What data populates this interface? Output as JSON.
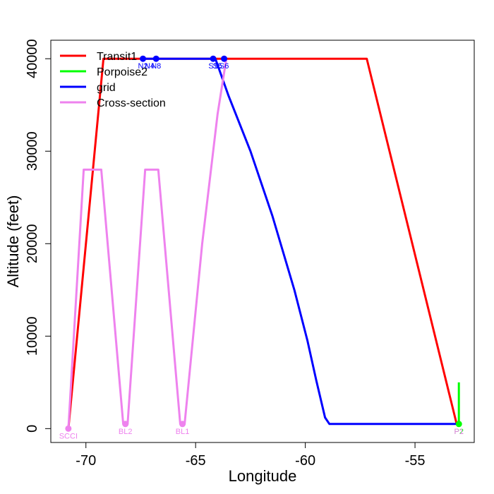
{
  "chart_data": {
    "type": "line",
    "title": "",
    "xlabel": "Longitude",
    "ylabel": "Altitude (feet)",
    "xlim": [
      -71.6,
      -52.3
    ],
    "ylim": [
      -1500,
      42000
    ],
    "x_ticks": [
      -70,
      -65,
      -60,
      -55
    ],
    "x_tick_labels": [
      "-70",
      "-65",
      "-60",
      "-55"
    ],
    "y_ticks": [
      0,
      10000,
      20000,
      30000,
      40000
    ],
    "y_tick_labels": [
      "0",
      "10000",
      "20000",
      "30000",
      "40000"
    ],
    "grid": false,
    "legend_position": "top-left",
    "series": [
      {
        "name": "Transit1",
        "color": "#ff0000",
        "x": [
          -70.8,
          -69.2,
          -57.2,
          -53.1
        ],
        "y": [
          0,
          40000,
          40000,
          500
        ]
      },
      {
        "name": "Porpoise2",
        "color": "#00ff00",
        "x": [
          -53.0,
          -53.0
        ],
        "y": [
          500,
          5000
        ]
      },
      {
        "name": "grid",
        "color": "#0000ff",
        "x": [
          -67.4,
          -64.1,
          -63.5,
          -62.5,
          -61.5,
          -60.5,
          -59.9,
          -59.5,
          -59.1,
          -58.9,
          -53.1
        ],
        "y": [
          40000,
          40000,
          36000,
          30000,
          23000,
          15000,
          9500,
          5200,
          1200,
          500,
          500
        ]
      },
      {
        "name": "Cross-section",
        "color": "#ee82ee",
        "x": [
          -70.8,
          -70.1,
          -69.3,
          -68.3,
          -68.1,
          -67.3,
          -66.7,
          -65.7,
          -65.5,
          -64.7,
          -64.0,
          -63.6
        ],
        "y": [
          0,
          28000,
          28000,
          500,
          500,
          28000,
          28000,
          500,
          500,
          20000,
          34000,
          40000
        ]
      }
    ],
    "annotations": [
      {
        "label": "SCCI",
        "x": -70.8,
        "y": 0,
        "color": "#ee82ee",
        "marker": true
      },
      {
        "label": "BL2",
        "x": -68.2,
        "y": 500,
        "color": "#ee82ee",
        "marker": true
      },
      {
        "label": "BL1",
        "x": -65.6,
        "y": 500,
        "color": "#ee82ee",
        "marker": true
      },
      {
        "label": "N2",
        "x": -67.4,
        "y": 40000,
        "color": "#0000ff",
        "marker": true
      },
      {
        "label": "N4",
        "x": -67.1,
        "y": 40000,
        "color": "#0000ff",
        "marker": false
      },
      {
        "label": "N8",
        "x": -66.8,
        "y": 40000,
        "color": "#0000ff",
        "marker": true
      },
      {
        "label": "S1",
        "x": -64.2,
        "y": 40000,
        "color": "#0000ff",
        "marker": true
      },
      {
        "label": "S5",
        "x": -64.0,
        "y": 40000,
        "color": "#0000ff",
        "marker": false
      },
      {
        "label": "S6",
        "x": -63.7,
        "y": 40000,
        "color": "#0000ff",
        "marker": true
      },
      {
        "label": "P2",
        "x": -53.0,
        "y": 500,
        "color": "#00ff00",
        "marker": true
      },
      {
        "label": "P1",
        "x": -53.0,
        "y": 500,
        "color": "#ee82ee",
        "marker": false
      }
    ]
  }
}
